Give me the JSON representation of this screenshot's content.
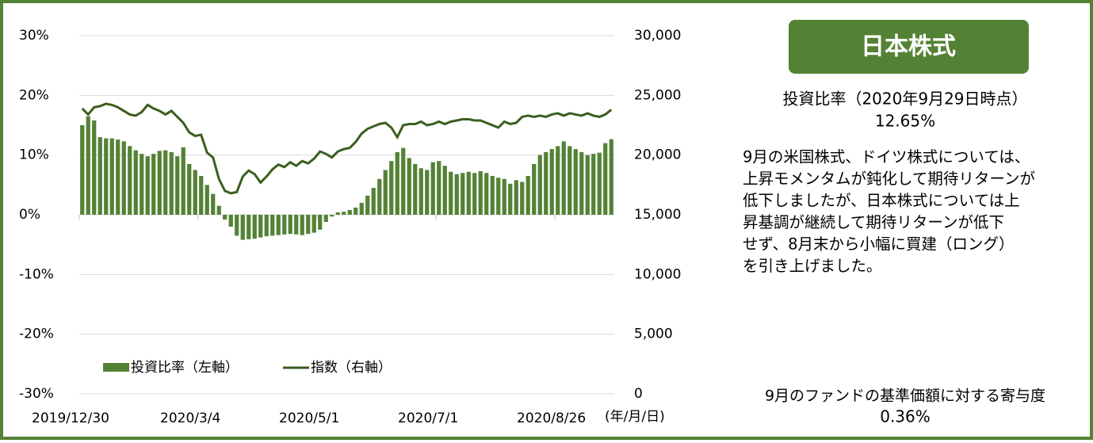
{
  "chart_data": {
    "type": "bar+line",
    "categories": [
      "2019/12/30",
      null,
      null,
      null,
      null,
      null,
      null,
      null,
      null,
      null,
      null,
      null,
      null,
      null,
      null,
      null,
      null,
      null,
      null,
      null,
      "2020/3/4",
      null,
      null,
      null,
      null,
      null,
      null,
      null,
      null,
      null,
      null,
      null,
      null,
      null,
      null,
      null,
      null,
      null,
      null,
      null,
      "2020/5/1",
      null,
      null,
      null,
      null,
      null,
      null,
      null,
      null,
      null,
      null,
      null,
      null,
      null,
      null,
      null,
      null,
      null,
      null,
      null,
      "2020/7/1",
      null,
      null,
      null,
      null,
      null,
      null,
      null,
      null,
      null,
      null,
      null,
      null,
      null,
      null,
      null,
      null,
      null,
      null,
      null,
      "2020/8/26",
      null,
      null,
      null,
      null,
      null,
      null,
      null,
      null,
      null
    ],
    "x_unit": "(年/月/日)",
    "series": [
      {
        "name": "投資比率（左軸）",
        "color": "#548235",
        "type": "bar",
        "values": [
          15,
          16.5,
          15.8,
          13,
          12.8,
          12.8,
          12.6,
          12.3,
          11.5,
          10.8,
          10.2,
          9.8,
          10.2,
          10.7,
          10.8,
          10.5,
          9.8,
          11.3,
          8.5,
          7.5,
          6.5,
          5,
          3.5,
          1.5,
          -0.8,
          -2,
          -3.5,
          -4.2,
          -4.1,
          -4,
          -3.8,
          -3.6,
          -3.5,
          -3.4,
          -3.3,
          -3.2,
          -3.3,
          -3.4,
          -3.2,
          -3,
          -2.5,
          -1.2,
          -0.3,
          0.4,
          0.5,
          0.8,
          1.2,
          2,
          3.2,
          4.5,
          6,
          7.5,
          9,
          10.5,
          11.2,
          9.5,
          8.5,
          7.8,
          7.5,
          8.8,
          9,
          8.2,
          7.2,
          6.8,
          7,
          7.2,
          7,
          7.3,
          7,
          6.5,
          6.2,
          6,
          5.2,
          5.8,
          5.5,
          6.5,
          8.5,
          10,
          10.5,
          11,
          11.5,
          12.3,
          11.5,
          11,
          10.5,
          10,
          10.2,
          10.4,
          12,
          12.65
        ]
      },
      {
        "name": "指数（右軸）",
        "color": "#3b5e1f",
        "type": "line",
        "axis": "y2",
        "values": [
          23900,
          23400,
          24000,
          24100,
          24300,
          24200,
          24000,
          23700,
          23400,
          23300,
          23600,
          24200,
          23900,
          23700,
          23400,
          23700,
          23200,
          22700,
          21900,
          21600,
          21700,
          20200,
          19800,
          18000,
          17000,
          16800,
          16900,
          18200,
          18700,
          18400,
          17700,
          18200,
          18800,
          19200,
          19000,
          19400,
          19100,
          19500,
          19300,
          19700,
          20300,
          20100,
          19800,
          20300,
          20500,
          20600,
          21100,
          21800,
          22200,
          22400,
          22600,
          22700,
          22300,
          21500,
          22500,
          22600,
          22600,
          22800,
          22500,
          22600,
          22800,
          22600,
          22800,
          22900,
          23000,
          23000,
          22900,
          22900,
          22700,
          22500,
          22300,
          22800,
          22600,
          22700,
          23200,
          23300,
          23200,
          23300,
          23200,
          23400,
          23500,
          23300,
          23500,
          23400,
          23300,
          23500,
          23300,
          23200,
          23400,
          23800
        ]
      }
    ],
    "ylim": [
      -30,
      30
    ],
    "yticks": [
      {
        "value": -30,
        "label": "-30%"
      },
      {
        "value": -20,
        "label": "-20%"
      },
      {
        "value": -10,
        "label": "-10%"
      },
      {
        "value": 0,
        "label": "0%"
      },
      {
        "value": 10,
        "label": "10%"
      },
      {
        "value": 20,
        "label": "20%"
      },
      {
        "value": 30,
        "label": "30%"
      }
    ],
    "y2lim": [
      0,
      30000
    ],
    "y2ticks": [
      0,
      {
        "value": 5000,
        "label": "5,000"
      },
      {
        "value": 10000,
        "label": "10,000"
      },
      {
        "value": 15000,
        "label": "15,000"
      },
      {
        "value": 20000,
        "label": "20,000"
      },
      {
        "value": 25000,
        "label": "25,000"
      },
      {
        "value": 30000,
        "label": "30,000"
      }
    ],
    "grid": true,
    "legend": "lower left"
  },
  "panel": {
    "title": "日本株式",
    "ratio_label": "投資比率（2020年9月29日時点）",
    "ratio_value": "12.65%",
    "commentary": [
      "9月の米国株式、ドイツ株式については、",
      "上昇モメンタムが鈍化して期待リターンが",
      "低下しましたが、日本株式については上",
      "昇基調が継続して期待リターンが低下",
      "せず、8月末から小幅に買建（ロング）",
      "を引き上げました。"
    ],
    "contribution_label": "9月のファンドの基準価額に対する寄与度",
    "contribution_value": "0.36%"
  }
}
